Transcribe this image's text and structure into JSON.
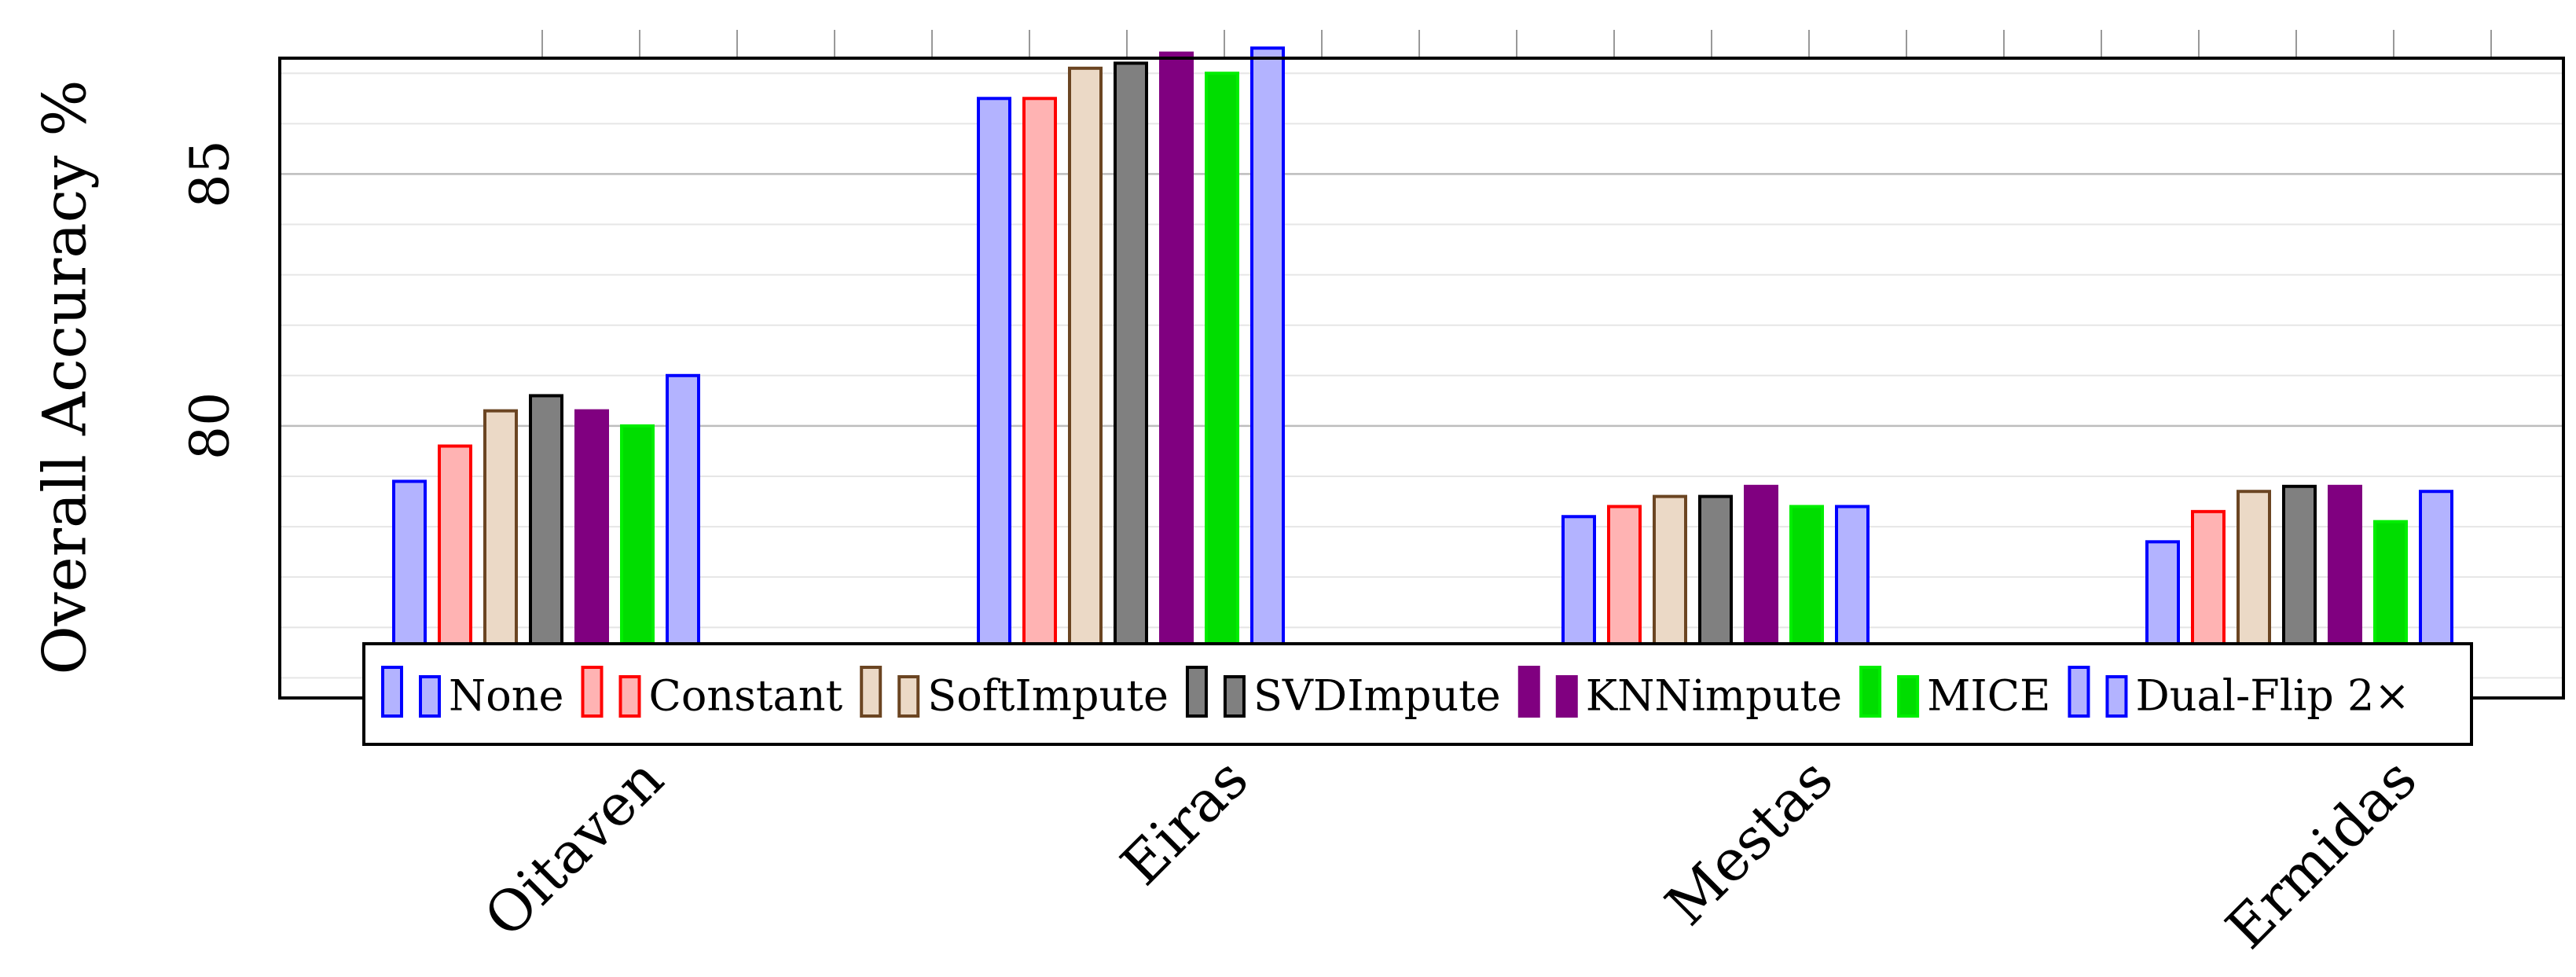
{
  "chart_data": {
    "type": "bar",
    "title": "",
    "xlabel": "",
    "ylabel": "Overall Accuracy %",
    "categories": [
      "Oitaven",
      "Eiras",
      "Mestas",
      "Ermidas"
    ],
    "ylim": [
      74.6,
      87.3
    ],
    "yticks": [
      80,
      85
    ],
    "grid": true,
    "legend_position": "bottom inside, horizontal",
    "series": [
      {
        "name": "None",
        "fill": "#b3b3ff",
        "stroke": "#0000ff",
        "values": [
          78.9,
          86.5,
          78.2,
          77.7
        ]
      },
      {
        "name": "Constant",
        "fill": "#ffb3b3",
        "stroke": "#ff0000",
        "values": [
          79.6,
          86.5,
          78.4,
          78.3
        ]
      },
      {
        "name": "SoftImpute",
        "fill": "#ebd9c6",
        "stroke": "#6b4522",
        "values": [
          80.3,
          87.1,
          78.6,
          78.7
        ]
      },
      {
        "name": "SVDImpute",
        "fill": "#808080",
        "stroke": "#000000",
        "values": [
          80.6,
          87.2,
          78.6,
          78.8
        ]
      },
      {
        "name": "KNNimpute",
        "fill": "#800080",
        "stroke": "#800080",
        "values": [
          80.3,
          87.4,
          78.8,
          78.8
        ]
      },
      {
        "name": "MICE",
        "fill": "#00dd00",
        "stroke": "#00ee00",
        "values": [
          80.0,
          87.0,
          78.4,
          78.1
        ]
      },
      {
        "name": "Dual-Flip 2×",
        "fill": "#b3b3ff",
        "stroke": "#0000ff",
        "values": [
          81.0,
          87.5,
          78.4,
          78.7
        ]
      }
    ]
  }
}
